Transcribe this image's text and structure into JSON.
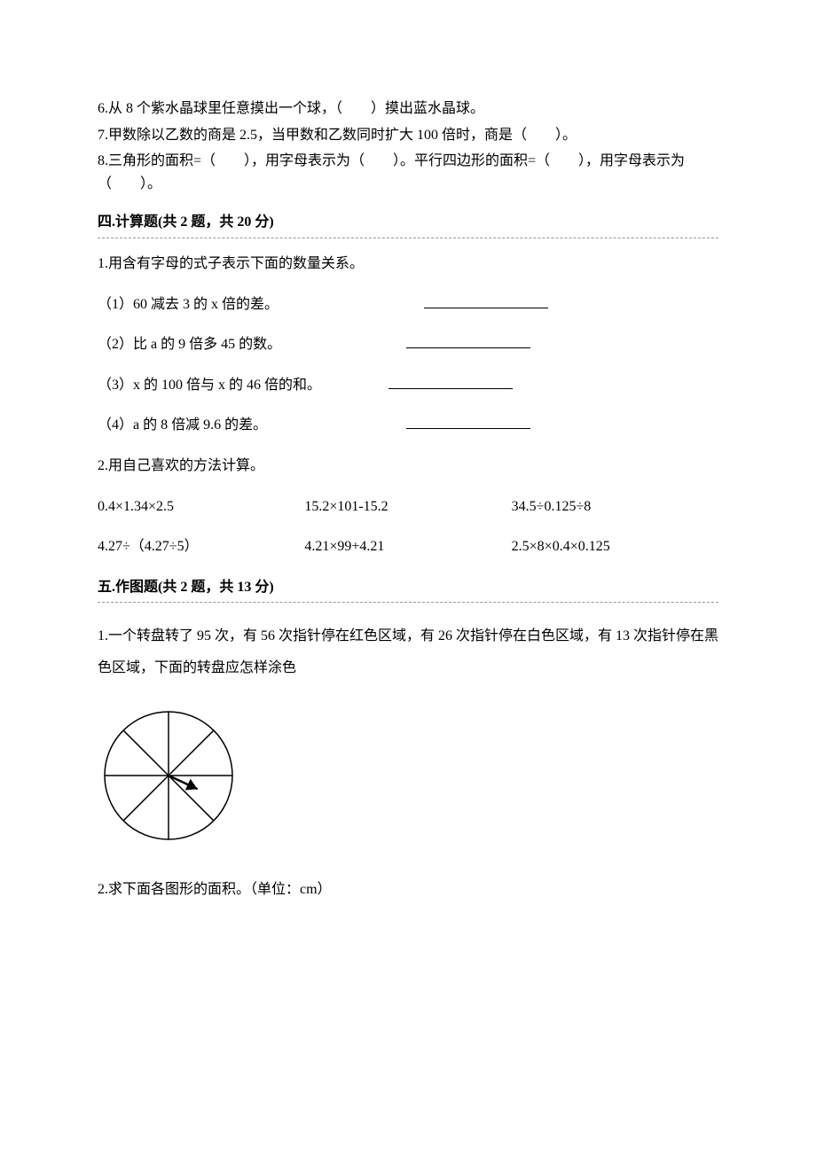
{
  "fill_in": {
    "q6": "6.从 8 个紫水晶球里任意摸出一个球，（　　）摸出蓝水晶球。",
    "q7": "7.甲数除以乙数的商是 2.5，当甲数和乙数同时扩大 100 倍时，商是（　　）。",
    "q8": "8.三角形的面积=（　　），用字母表示为（　　）。平行四边形的面积=（　　），用字母表示为（　　）。"
  },
  "section4": {
    "header": "四.计算题(共 2 题，共 20 分)",
    "q1_stem": "1.用含有字母的式子表示下面的数量关系。",
    "q1_sub1": "（1）60 减去 3 的 x 倍的差。",
    "q1_sub2": "（2）比 a 的 9 倍多 45 的数。",
    "q1_sub3": "（3）x 的 100 倍与 x 的 46 倍的和。",
    "q1_sub4": "（4）a 的 8 倍减 9.6 的差。",
    "q2_stem": "2.用自己喜欢的方法计算。",
    "calc_row1": [
      "0.4×1.34×2.5",
      "15.2×101-15.2",
      "34.5÷0.125÷8"
    ],
    "calc_row2": [
      "4.27÷（4.27÷5）",
      "4.21×99+4.21",
      "2.5×8×0.4×0.125"
    ]
  },
  "section5": {
    "header": "五.作图题(共 2 题，共 13 分)",
    "q1": "1.一个转盘转了 95 次，有 56 次指针停在红色区域，有 26 次指针停在白色区域，有 13 次指针停在黑色区域，下面的转盘应怎样涂色",
    "q2": "2.求下面各图形的面积。（单位：cm）",
    "spinner": {
      "sectors": 8,
      "stroke": "#000000",
      "stroke_width": 1.5,
      "radius": 72,
      "arrow_angle_deg": 115
    }
  },
  "colors": {
    "text": "#000000",
    "background": "#ffffff",
    "dashed_border": "#999999"
  }
}
